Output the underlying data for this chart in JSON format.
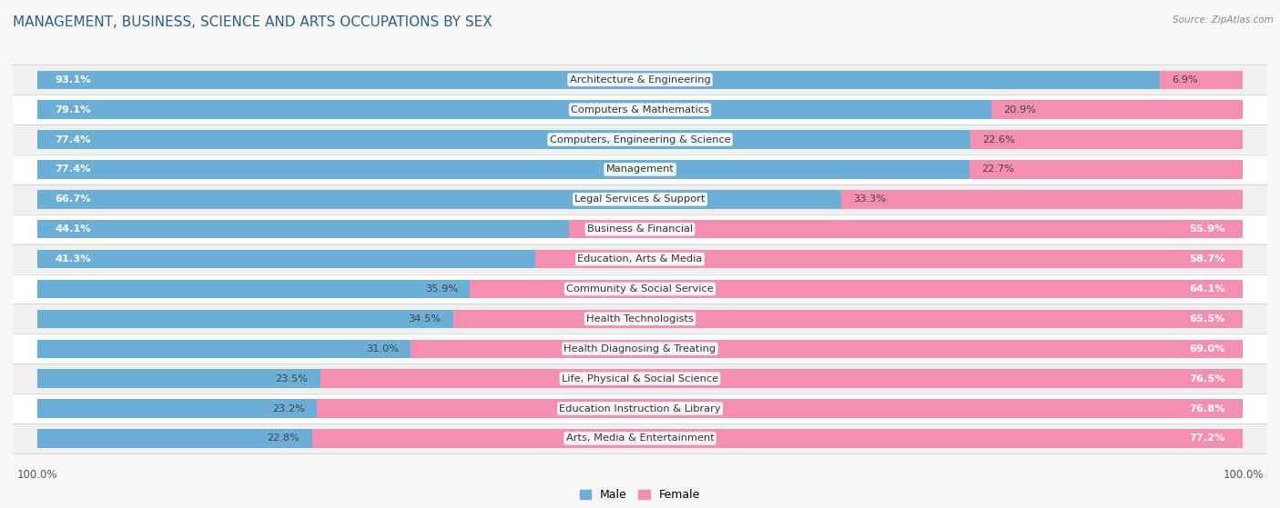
{
  "title": "Management, Business, Science and Arts Occupations by Sex",
  "source": "Source: ZipAtlas.com",
  "categories": [
    "Architecture & Engineering",
    "Computers & Mathematics",
    "Computers, Engineering & Science",
    "Management",
    "Legal Services & Support",
    "Business & Financial",
    "Education, Arts & Media",
    "Community & Social Service",
    "Health Technologists",
    "Health Diagnosing & Treating",
    "Life, Physical & Social Science",
    "Education Instruction & Library",
    "Arts, Media & Entertainment"
  ],
  "male_pct": [
    93.1,
    79.1,
    77.4,
    77.4,
    66.7,
    44.1,
    41.3,
    35.9,
    34.5,
    31.0,
    23.5,
    23.2,
    22.8
  ],
  "female_pct": [
    6.9,
    20.9,
    22.6,
    22.7,
    33.3,
    55.9,
    58.7,
    64.1,
    65.5,
    69.0,
    76.5,
    76.8,
    77.2
  ],
  "male_color": "#6baed6",
  "female_color": "#f48fb1",
  "bar_height": 0.62,
  "bg_color": "#f7f7f7",
  "row_colors": [
    "#f0f0f0",
    "#ffffff"
  ],
  "title_fontsize": 11,
  "label_fontsize": 8.2,
  "tick_fontsize": 8.5,
  "legend_fontsize": 9,
  "source_fontsize": 7.5
}
